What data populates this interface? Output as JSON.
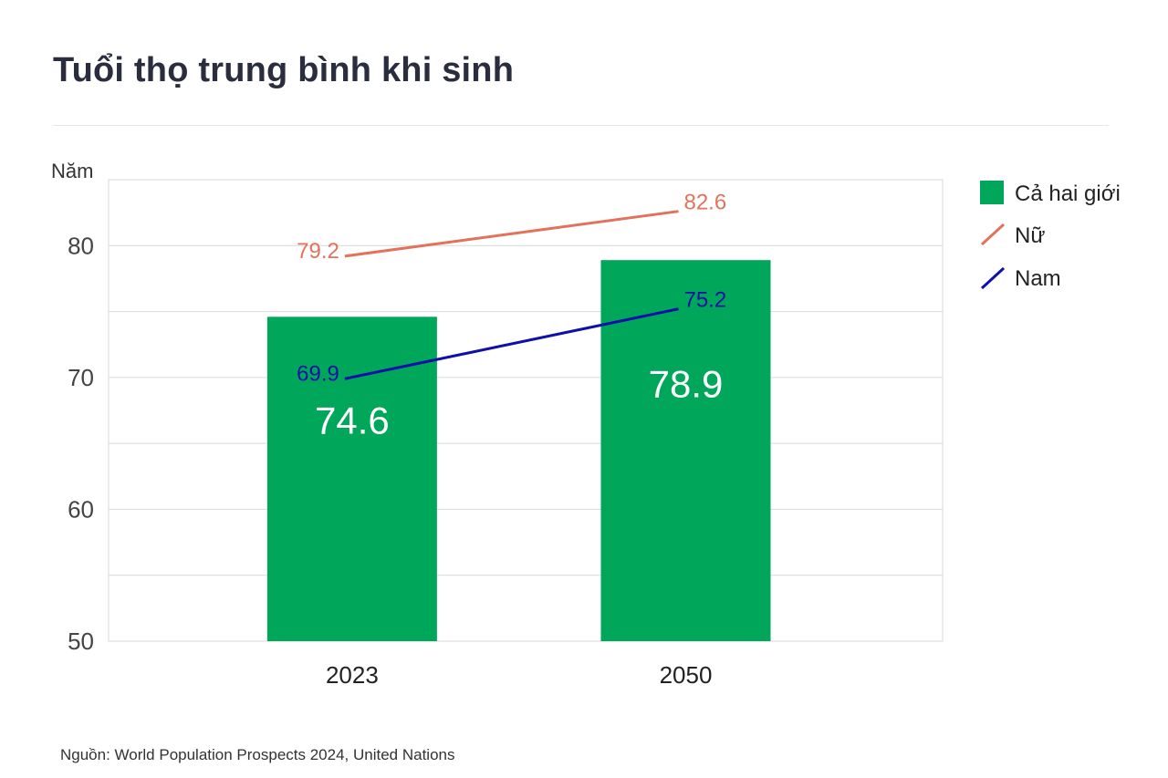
{
  "title": "Tuổi thọ trung bình khi sinh",
  "source": "Nguồn: World Population Prospects 2024, United Nations",
  "colors": {
    "both": "#00a65a",
    "female": "#e2725b",
    "male": "#1010a8",
    "grid": "#d9d9d9",
    "bar_label": "#ffffff"
  },
  "chart_data": {
    "type": "bar",
    "categories": [
      "2023",
      "2050"
    ],
    "ylabel": "Năm",
    "ylim": [
      50,
      85
    ],
    "yticks": [
      50,
      60,
      70,
      80
    ],
    "grid": true,
    "legend_position": "right",
    "series": [
      {
        "name": "Cả hai giới",
        "type": "bar",
        "values": [
          74.6,
          78.9
        ],
        "labels": [
          "74.6",
          "78.9"
        ]
      },
      {
        "name": "Nữ",
        "type": "line",
        "values": [
          79.2,
          82.6
        ],
        "labels": [
          "79.2",
          "82.6"
        ]
      },
      {
        "name": "Nam",
        "type": "line",
        "values": [
          69.9,
          75.2
        ],
        "labels": [
          "69.9",
          "75.2"
        ]
      }
    ]
  }
}
